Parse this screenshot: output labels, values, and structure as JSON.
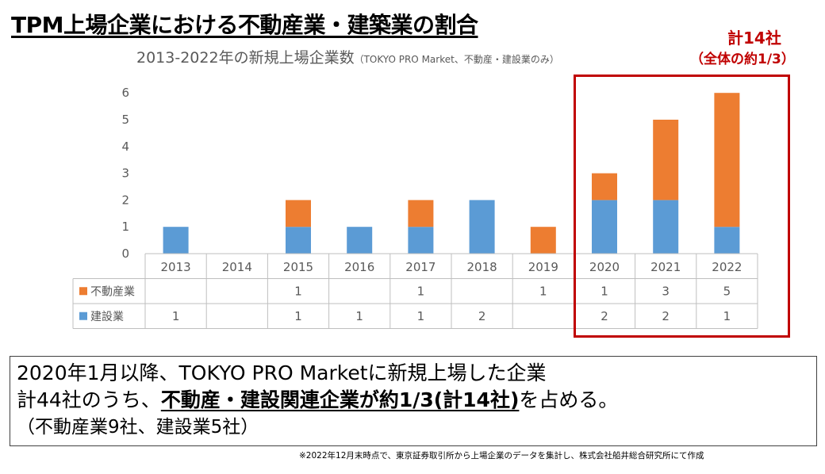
{
  "title": "TPM上場企業における不動産業・建築業の割合",
  "subtitle": "2013-2022年の新規上場企業数",
  "subtitle_note": "（TOKYO PRO Market、不動産・建設業のみ）",
  "callout": {
    "total": "計14社",
    "share": "（全体の約1/3）",
    "color": "#c00000"
  },
  "chart_data": {
    "type": "bar",
    "stacked": true,
    "categories": [
      "2013",
      "2014",
      "2015",
      "2016",
      "2017",
      "2018",
      "2019",
      "2020",
      "2021",
      "2022"
    ],
    "series": [
      {
        "name": "建設業",
        "color": "#5b9bd5",
        "values": [
          1,
          0,
          1,
          1,
          1,
          2,
          0,
          2,
          2,
          1
        ]
      },
      {
        "name": "不動産業",
        "color": "#ed7d31",
        "values": [
          0,
          0,
          1,
          0,
          1,
          0,
          1,
          1,
          3,
          5
        ]
      }
    ],
    "table_rows": [
      {
        "label": "不動産業",
        "color": "#ed7d31",
        "cells": [
          "",
          "",
          "1",
          "",
          "1",
          "",
          "1",
          "1",
          "3",
          "5"
        ]
      },
      {
        "label": "建設業",
        "color": "#5b9bd5",
        "cells": [
          "1",
          "",
          "1",
          "1",
          "1",
          "2",
          "",
          "2",
          "2",
          "1"
        ]
      }
    ],
    "y_ticks": [
      "0",
      "1",
      "2",
      "3",
      "4",
      "5",
      "6"
    ],
    "ylim": [
      0,
      6
    ],
    "grid": false,
    "legend": "data table"
  },
  "summary": {
    "line1": "2020年1月以降、TOKYO  PRO Marketに新規上場した企業",
    "line2_prefix": "計44社のうち、",
    "line2_emphasis": "不動産・建設関連企業が約1/3(計14社)",
    "line2_suffix": "を占める。",
    "line3": "（不動産業9社、建設業5社）"
  },
  "footnote": "※2022年12月末時点で、東京証券取引所から上場企業のデータを集計し、株式会社船井総合研究所にて作成"
}
